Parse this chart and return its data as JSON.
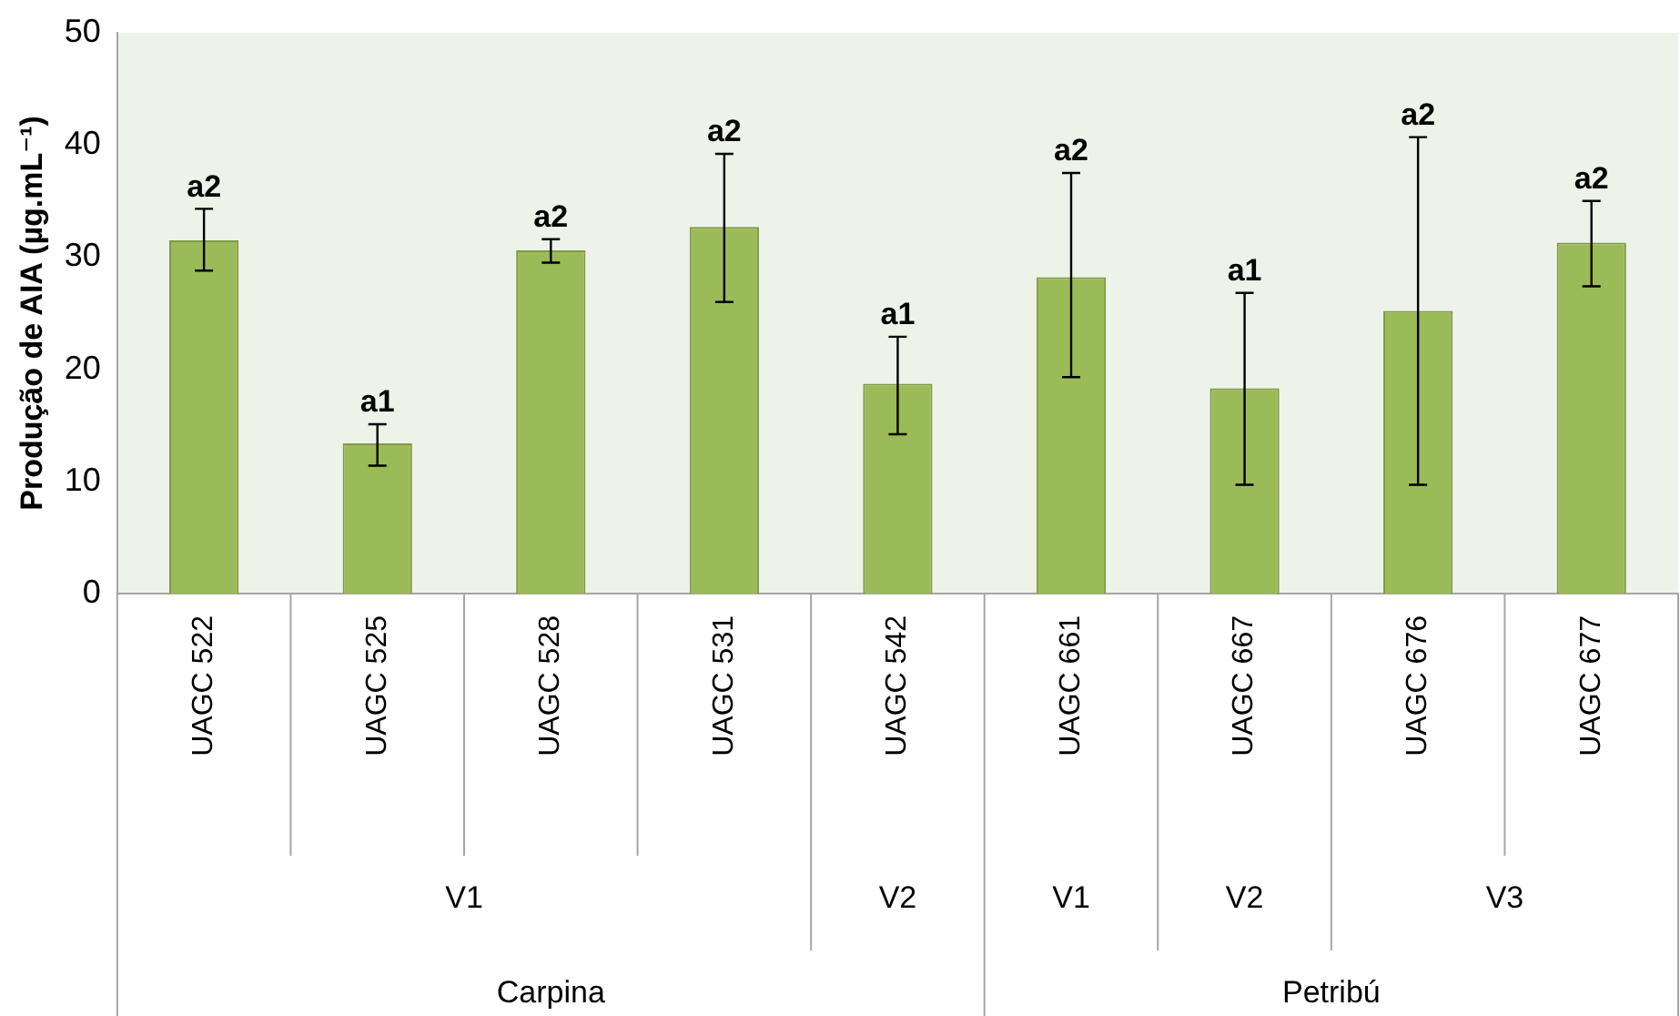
{
  "chart_data": {
    "type": "bar",
    "ylabel": "Produção de AIA (µg.mL⁻¹)",
    "categories": [
      "UAGC 522",
      "UAGC 525",
      "UAGC 528",
      "UAGC 531",
      "UAGC 542",
      "UAGC 661",
      "UAGC 667",
      "UAGC 676",
      "UAGC 677"
    ],
    "values": [
      31.5,
      13.4,
      30.6,
      32.7,
      18.7,
      28.2,
      18.3,
      25.2,
      31.3
    ],
    "errors": [
      [
        28.8,
        34.3
      ],
      [
        11.4,
        15.1
      ],
      [
        29.5,
        31.6
      ],
      [
        26.0,
        39.2
      ],
      [
        14.2,
        22.9
      ],
      [
        19.3,
        37.5
      ],
      [
        9.7,
        26.8
      ],
      [
        9.7,
        40.7
      ],
      [
        27.4,
        35.0
      ]
    ],
    "color": "#9bbb59",
    "ylim": [
      0,
      50
    ],
    "yticks": [
      0,
      10,
      20,
      30,
      40,
      50
    ],
    "grid": false,
    "annotations": [
      "V1",
      "V2",
      "V1",
      "V2",
      "V3",
      "Carpina",
      "Petribú",
      {
        "text": "a2",
        "x": "UAGC 522",
        "y": 34.3
      },
      {
        "text": "a1",
        "x": "UAGC 525",
        "y": 15.1
      },
      {
        "text": "a2",
        "x": "UAGC 528",
        "y": 31.6
      },
      {
        "text": "a2",
        "x": "UAGC 531",
        "y": 39.2
      },
      {
        "text": "a1",
        "x": "UAGC 542",
        "y": 22.9
      },
      {
        "text": "a2",
        "x": "UAGC 661",
        "y": 37.5
      },
      {
        "text": "a1",
        "x": "UAGC 667",
        "y": 26.8
      },
      {
        "text": "a2",
        "x": "UAGC 676",
        "y": 40.7
      },
      {
        "text": "a2",
        "x": "UAGC 677",
        "y": 35.0
      }
    ]
  }
}
